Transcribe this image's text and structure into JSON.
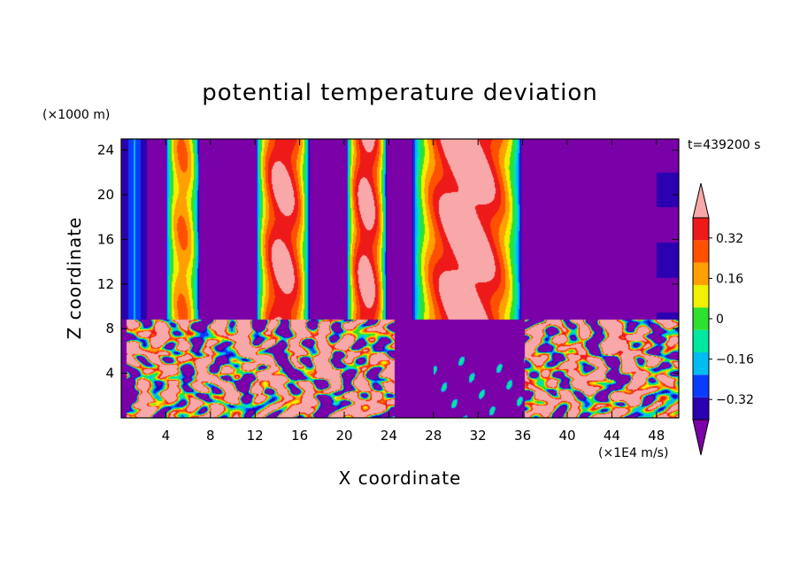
{
  "chart_data": {
    "type": "heatmap",
    "title": "potential temperature deviation",
    "xlabel": "X coordinate",
    "ylabel": "Z coordinate",
    "x_unit": "(×1E4 m/s)",
    "y_unit": "(×1000 m)",
    "time_label": "t=439200 s",
    "xlim": [
      0,
      50
    ],
    "ylim": [
      0,
      25
    ],
    "x_ticks": [
      4,
      8,
      12,
      16,
      20,
      24,
      28,
      32,
      36,
      40,
      44,
      48
    ],
    "y_ticks": [
      4,
      8,
      12,
      16,
      20,
      24
    ],
    "colorbar": {
      "levels": [
        -0.4,
        -0.32,
        -0.24,
        -0.16,
        -0.08,
        0,
        0.08,
        0.16,
        0.24,
        0.32,
        0.4
      ],
      "tick_values": [
        0.32,
        0.16,
        0,
        -0.16,
        -0.32
      ],
      "tick_labels": [
        "0.32",
        "0.16",
        "0",
        "−0.16",
        "−0.32"
      ],
      "colors": [
        "#7a00a8",
        "#2a00b0",
        "#0a3cff",
        "#00bcf0",
        "#00e8a0",
        "#30e030",
        "#f0f000",
        "#ffa000",
        "#ff5000",
        "#ee1a1a",
        "#f8a8a8"
      ],
      "extend": "both"
    },
    "upper_layer": {
      "z_range": [
        8.8,
        25
      ],
      "columns": [
        {
          "x_center": 5.5,
          "width": 3.0,
          "peak": 0.2
        },
        {
          "x_center": 14.5,
          "width": 4.8,
          "peak": 0.42
        },
        {
          "x_center": 22.0,
          "width": 3.6,
          "peak": 0.42
        },
        {
          "x_center": 31.0,
          "width": 9.8,
          "peak": 0.48
        }
      ]
    },
    "lower_layer": {
      "z_range": [
        0,
        8.8
      ],
      "turbulent_regions": [
        [
          0.5,
          24.5
        ],
        [
          36.2,
          50
        ]
      ],
      "quiet_region": [
        25.8,
        36.2
      ]
    }
  }
}
